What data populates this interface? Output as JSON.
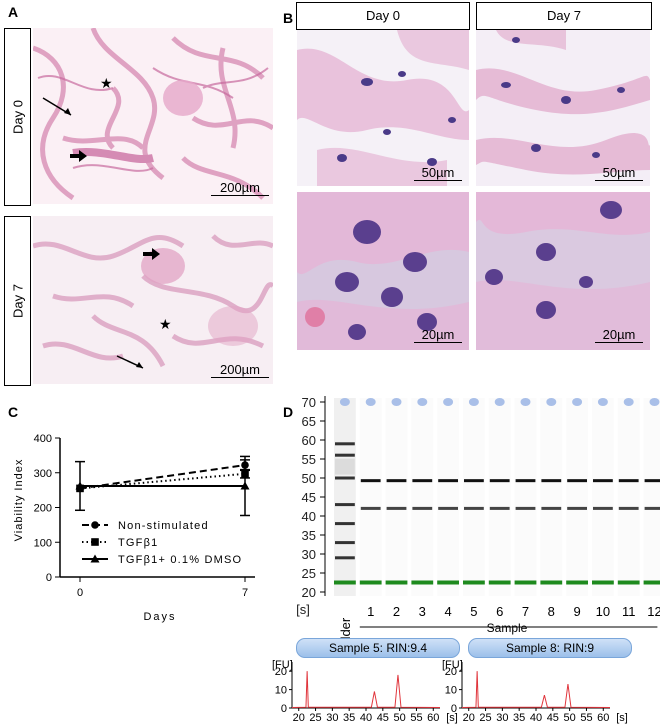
{
  "panels": {
    "a": {
      "letter": "A",
      "rows": [
        {
          "label": "Day 0",
          "scale": "200µm"
        },
        {
          "label": "Day 7",
          "scale": "200µm"
        }
      ]
    },
    "b": {
      "letter": "B",
      "columns": [
        "Day 0",
        "Day 7"
      ],
      "scales": {
        "top_left": "50µm",
        "top_right": "50µm",
        "bottom_left": "20µm",
        "bottom_right": "20µm"
      }
    },
    "c": {
      "letter": "C"
    },
    "d": {
      "letter": "D"
    }
  },
  "chart_data": [
    {
      "type": "line",
      "panel": "C",
      "xlabel": "Days",
      "ylabel": "Viability Index",
      "xlim": [
        0,
        7
      ],
      "ylim": [
        0,
        400
      ],
      "x_ticks": [
        0,
        7
      ],
      "y_ticks": [
        0,
        100,
        200,
        300,
        400
      ],
      "legend_position": "bottom-left",
      "series": [
        {
          "name": "Non-stimulated",
          "style": "dashed",
          "marker": "circle",
          "x": [
            0,
            7
          ],
          "y": [
            255,
            322
          ],
          "err": [
            0,
            15
          ]
        },
        {
          "name": "TGFβ1",
          "style": "dotted",
          "marker": "square",
          "x": [
            0,
            7
          ],
          "y": [
            255,
            297
          ],
          "err": [
            0,
            12
          ]
        },
        {
          "name": "TGFβ1+ 0.1% DMSO",
          "style": "solid",
          "marker": "triangle",
          "x": [
            0,
            7
          ],
          "y": [
            262,
            262
          ],
          "err": [
            70,
            85
          ]
        }
      ]
    },
    {
      "type": "gel",
      "panel": "D",
      "y_ticks": [
        70,
        65,
        60,
        55,
        50,
        45,
        40,
        35,
        30,
        25,
        20
      ],
      "y_unit": "[s]",
      "lanes": [
        "Ladder",
        "1",
        "2",
        "3",
        "4",
        "5",
        "6",
        "7",
        "8",
        "9",
        "10",
        "11",
        "12"
      ],
      "xlabel": "Sample",
      "ladder_bands": [
        29,
        33,
        38,
        43,
        50,
        56,
        59
      ],
      "sample_bands": [
        49.3,
        42.0
      ],
      "marker_band": 22.5,
      "top_spot": 70
    },
    {
      "type": "line",
      "panel": "D-electropherogram",
      "title": "Sample 5: RIN:9.4",
      "ylabel": "[FU]",
      "xlabel": "[s]",
      "x_ticks": [
        20,
        25,
        30,
        35,
        40,
        45,
        50,
        55,
        60
      ],
      "y_ticks": [
        0,
        10,
        20
      ],
      "peaks": [
        {
          "x": 22.5,
          "y": 20
        },
        {
          "x": 42.5,
          "y": 9
        },
        {
          "x": 49.5,
          "y": 18
        }
      ]
    },
    {
      "type": "line",
      "panel": "D-electropherogram",
      "title": "Sample 8: RIN:9",
      "ylabel": "[FU]",
      "xlabel": "[s]",
      "x_ticks": [
        20,
        25,
        30,
        35,
        40,
        45,
        50,
        55,
        60
      ],
      "y_ticks": [
        0,
        10,
        20
      ],
      "peaks": [
        {
          "x": 22.5,
          "y": 20
        },
        {
          "x": 42.5,
          "y": 7
        },
        {
          "x": 49.5,
          "y": 13
        }
      ]
    }
  ]
}
